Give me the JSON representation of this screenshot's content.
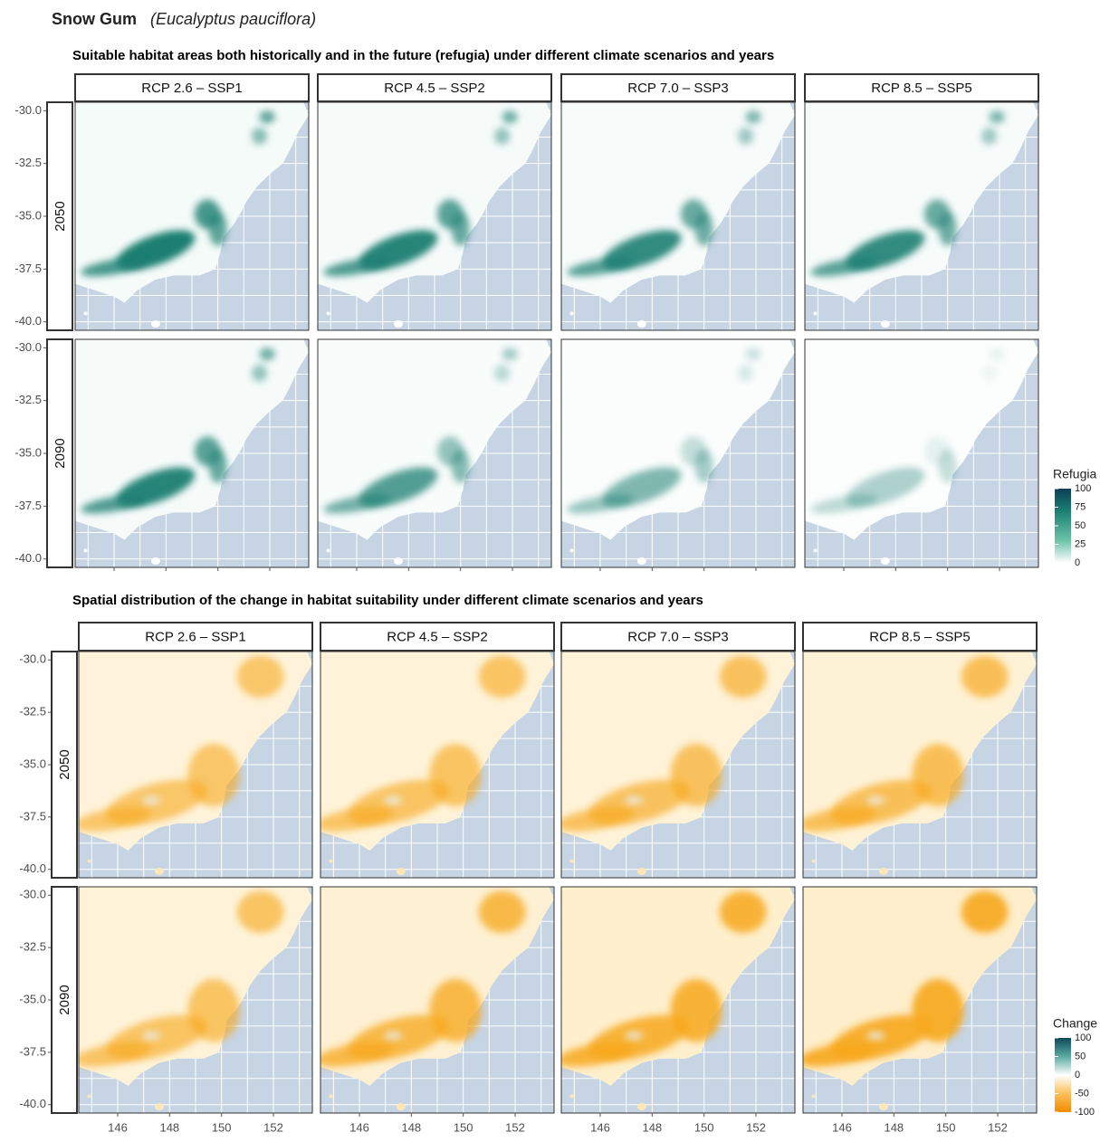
{
  "header": {
    "title": "Snow Gum",
    "species": "(Eucalyptus pauciflora)"
  },
  "sections": [
    {
      "title": "Suitable habitat areas both historically and in the future (refugia) under different climate scenarios and years",
      "columns": [
        "RCP 2.6 – SSP1",
        "RCP 4.5 – SSP2",
        "RCP 7.0 – SSP3",
        "RCP 8.5 – SSP5"
      ],
      "rows": [
        "2050",
        "2090"
      ],
      "legend": {
        "title": "Refugia",
        "ticks": [
          100,
          75,
          50,
          25,
          0
        ]
      }
    },
    {
      "title": "Spatial distribution of the change in habitat suitability under different climate scenarios and years",
      "columns": [
        "RCP 2.6 – SSP1",
        "RCP 4.5 – SSP2",
        "RCP 7.0 – SSP3",
        "RCP 8.5 – SSP5"
      ],
      "rows": [
        "2050",
        "2090"
      ],
      "legend": {
        "title": "Change",
        "ticks": [
          100,
          50,
          0,
          -50,
          -100
        ]
      }
    }
  ],
  "yticks": [
    {
      "value": -30,
      "label": "-30.0"
    },
    {
      "value": -32.5,
      "label": "-32.5"
    },
    {
      "value": -35,
      "label": "-35.0"
    },
    {
      "value": -37.5,
      "label": "-37.5"
    },
    {
      "value": -40,
      "label": "-40.0"
    }
  ],
  "xticks": [
    146,
    148,
    150,
    152
  ]
}
